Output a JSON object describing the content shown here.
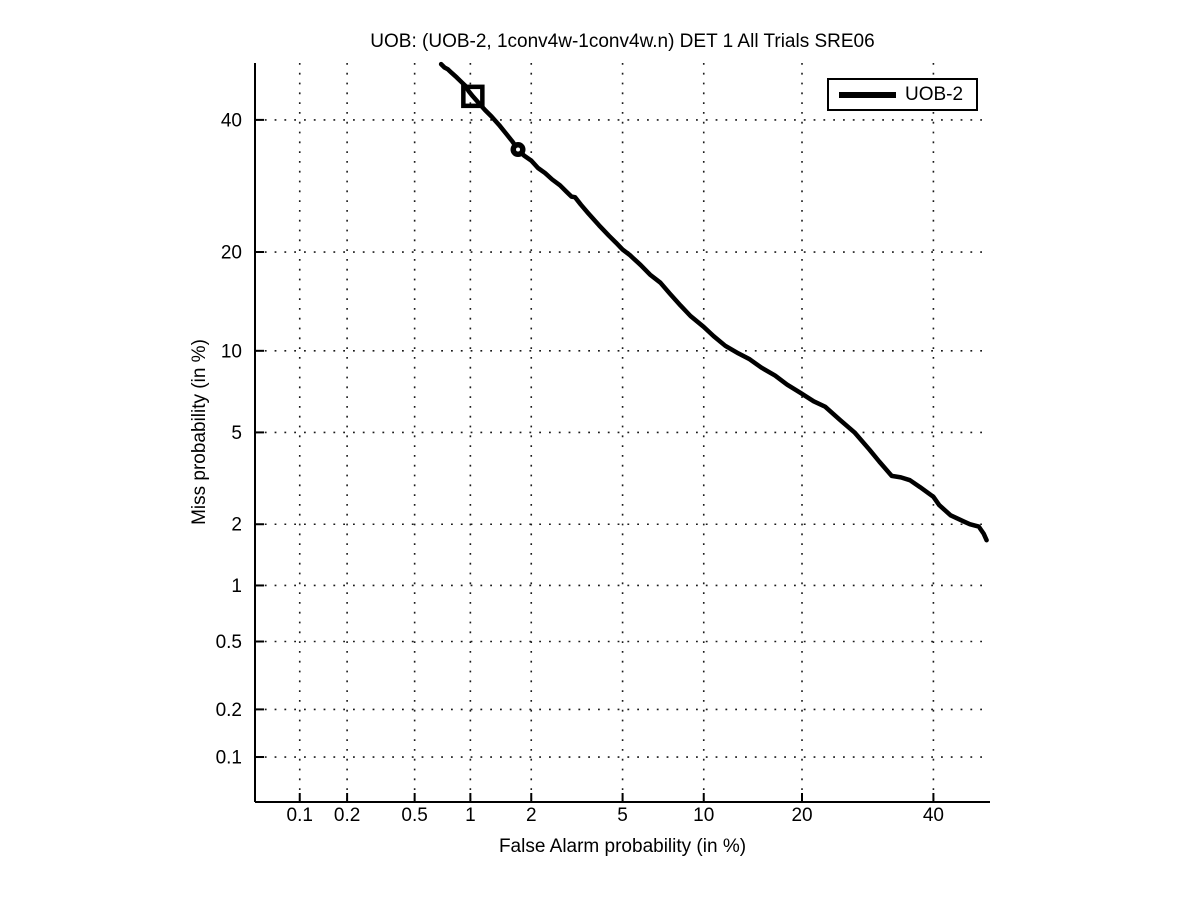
{
  "chart_data": {
    "type": "line",
    "title": "UOB: (UOB-2, 1conv4w-1conv4w.n) DET 1 All Trials SRE06",
    "xlabel": "False Alarm probability (in %)",
    "ylabel": "Miss probability (in %)",
    "scale": "probit-probit (normal deviate DET plot)",
    "xlim_percent": [
      0.05,
      50
    ],
    "ylim_percent": [
      0.05,
      50
    ],
    "xticks_percent": [
      0.1,
      0.2,
      0.5,
      1,
      2,
      5,
      10,
      20,
      40
    ],
    "yticks_percent": [
      0.1,
      0.2,
      0.5,
      1,
      2,
      5,
      10,
      20,
      40
    ],
    "grid": true,
    "grid_style": "dotted",
    "legend_position": "top-right",
    "colors": {
      "curve": "#000000",
      "grid": "#1a1a1a",
      "axis": "#000000",
      "background": "#ffffff"
    },
    "series": [
      {
        "name": "UOB-2",
        "color": "#000000",
        "points_fa_miss_percent": [
          [
            0.7,
            49.8
          ],
          [
            0.73,
            49.2
          ],
          [
            0.76,
            48.9
          ],
          [
            0.8,
            48.2
          ],
          [
            0.85,
            47.4
          ],
          [
            0.9,
            46.6
          ],
          [
            0.94,
            46.0
          ],
          [
            0.98,
            45.0
          ],
          [
            1.03,
            44.1
          ],
          [
            1.1,
            43.0
          ],
          [
            1.19,
            41.7
          ],
          [
            1.28,
            40.6
          ],
          [
            1.4,
            39.1
          ],
          [
            1.52,
            37.6
          ],
          [
            1.62,
            36.4
          ],
          [
            1.73,
            35.0
          ],
          [
            1.85,
            34.0
          ],
          [
            2.0,
            33.2
          ],
          [
            2.15,
            32.0
          ],
          [
            2.32,
            31.2
          ],
          [
            2.5,
            30.2
          ],
          [
            2.71,
            29.3
          ],
          [
            2.9,
            28.3
          ],
          [
            3.05,
            27.6
          ],
          [
            3.16,
            27.5
          ],
          [
            3.35,
            26.4
          ],
          [
            3.6,
            25.2
          ],
          [
            4.0,
            23.5
          ],
          [
            4.4,
            22.1
          ],
          [
            4.7,
            21.2
          ],
          [
            5.0,
            20.3
          ],
          [
            5.35,
            19.6
          ],
          [
            5.9,
            18.4
          ],
          [
            6.4,
            17.3
          ],
          [
            7.0,
            16.4
          ],
          [
            7.6,
            15.2
          ],
          [
            8.3,
            14.0
          ],
          [
            9.0,
            13.0
          ],
          [
            10.0,
            12.0
          ],
          [
            10.8,
            11.2
          ],
          [
            11.8,
            10.4
          ],
          [
            13.0,
            9.8
          ],
          [
            14.1,
            9.35
          ],
          [
            15.3,
            8.75
          ],
          [
            16.8,
            8.2
          ],
          [
            18.2,
            7.6
          ],
          [
            19.8,
            7.1
          ],
          [
            21.5,
            6.6
          ],
          [
            23.0,
            6.3
          ],
          [
            25.1,
            5.6
          ],
          [
            27.2,
            5.0
          ],
          [
            29.5,
            4.25
          ],
          [
            31.0,
            3.8
          ],
          [
            33.0,
            3.3
          ],
          [
            34.5,
            3.25
          ],
          [
            36.0,
            3.16
          ],
          [
            37.7,
            2.95
          ],
          [
            40.0,
            2.67
          ],
          [
            41.0,
            2.45
          ],
          [
            43.0,
            2.2
          ],
          [
            45.5,
            2.05
          ],
          [
            46.4,
            2.0
          ],
          [
            47.3,
            1.97
          ],
          [
            48.0,
            1.95
          ],
          [
            48.9,
            1.8
          ],
          [
            49.4,
            1.68
          ]
        ]
      }
    ],
    "markers": [
      {
        "shape": "square",
        "fa_percent": 1.03,
        "miss_percent": 44.1
      },
      {
        "shape": "circle",
        "fa_percent": 1.73,
        "miss_percent": 35.0
      }
    ]
  }
}
